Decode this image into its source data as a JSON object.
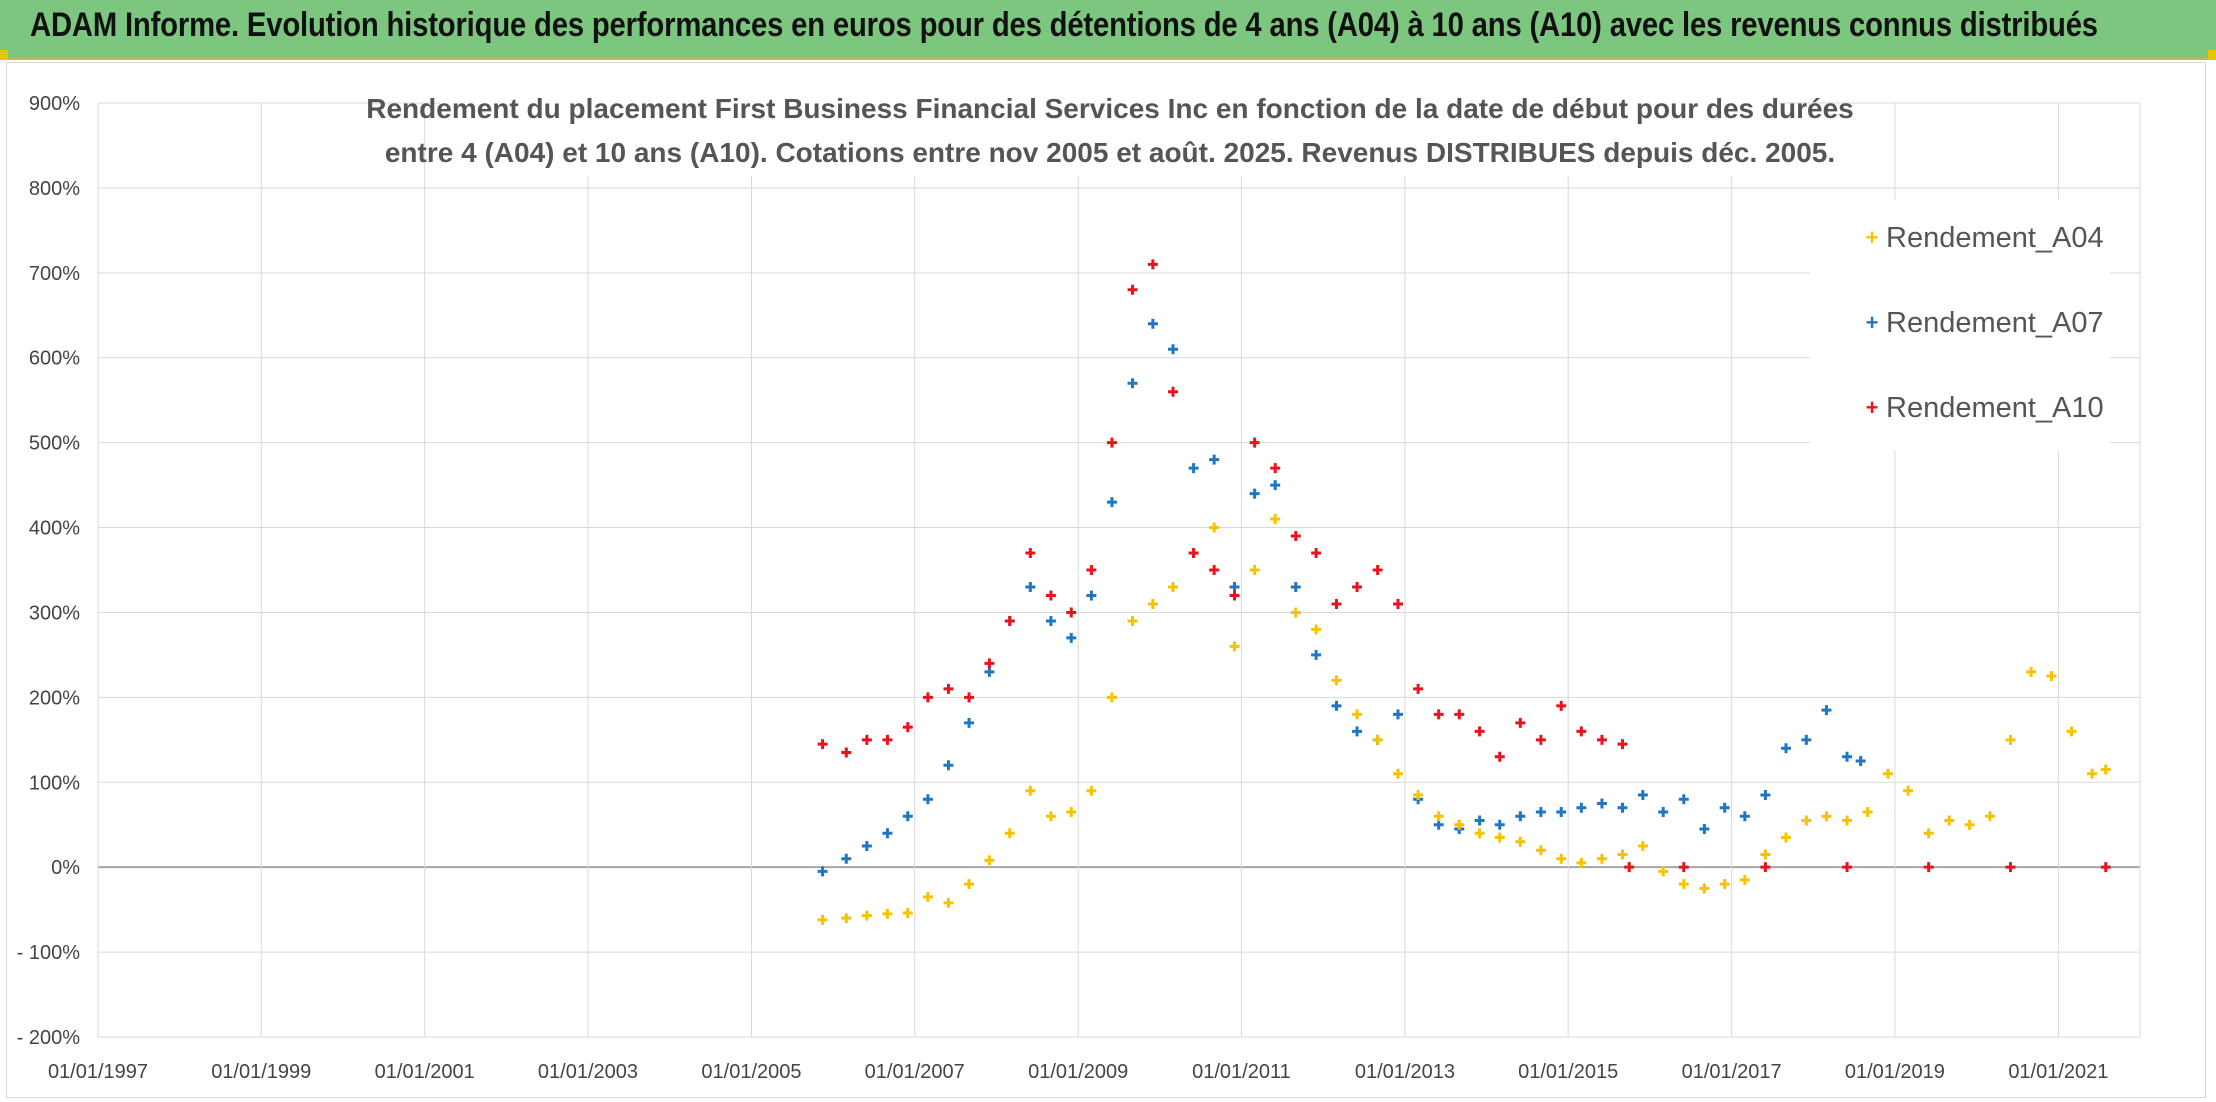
{
  "header": {
    "title": "ADAM Informe. Evolution historique des performances en euros pour des détentions de 4 ans (A04) à 10 ans (A10) avec les revenus connus distribués"
  },
  "chart_data": {
    "type": "scatter",
    "title_lines": [
      "Rendement du placement First Business Financial Services Inc en fonction de la date de début pour des durées",
      "entre 4 (A04) et 10 ans (A10). Cotations entre nov 2005 et août. 2025. Revenus DISTRIBUES depuis déc. 2005."
    ],
    "xlabel": "",
    "ylabel": "",
    "x_range": [
      "1997-01-01",
      "2022-01-01"
    ],
    "x_ticks": [
      "01/01/1997",
      "01/01/1999",
      "01/01/2001",
      "01/01/2003",
      "01/01/2005",
      "01/01/2007",
      "01/01/2009",
      "01/01/2011",
      "01/01/2013",
      "01/01/2015",
      "01/01/2017",
      "01/01/2019",
      "01/01/2021"
    ],
    "ylim": [
      -200,
      900
    ],
    "y_ticks": [
      "900%",
      "800%",
      "700%",
      "600%",
      "500%",
      "400%",
      "300%",
      "200%",
      "100%",
      "0%",
      "- 100%",
      "- 200%"
    ],
    "y_unit": "%",
    "grid": true,
    "legend_position": "top-right",
    "colors": {
      "A04": "#f7c300",
      "A07": "#1f77c4",
      "A10": "#e8131c",
      "grid": "#d9d9d9",
      "zero_line": "#a6a6a6"
    },
    "series": [
      {
        "name": "Rendement_A04",
        "color": "#f7c300",
        "points": [
          [
            "2005-11-15",
            -62
          ],
          [
            "2006-03-01",
            -60
          ],
          [
            "2006-06-01",
            -57
          ],
          [
            "2006-09-01",
            -55
          ],
          [
            "2006-12-01",
            -54
          ],
          [
            "2007-03-01",
            -35
          ],
          [
            "2007-06-01",
            -42
          ],
          [
            "2007-09-01",
            -20
          ],
          [
            "2007-12-01",
            8
          ],
          [
            "2008-03-01",
            40
          ],
          [
            "2008-06-01",
            90
          ],
          [
            "2008-09-01",
            60
          ],
          [
            "2008-12-01",
            65
          ],
          [
            "2009-03-01",
            90
          ],
          [
            "2009-06-01",
            200
          ],
          [
            "2009-09-01",
            290
          ],
          [
            "2009-12-01",
            310
          ],
          [
            "2010-03-01",
            330
          ],
          [
            "2010-06-01",
            370
          ],
          [
            "2010-09-01",
            400
          ],
          [
            "2010-12-01",
            260
          ],
          [
            "2011-03-01",
            350
          ],
          [
            "2011-06-01",
            410
          ],
          [
            "2011-09-01",
            300
          ],
          [
            "2011-12-01",
            280
          ],
          [
            "2012-03-01",
            220
          ],
          [
            "2012-06-01",
            180
          ],
          [
            "2012-09-01",
            150
          ],
          [
            "2012-12-01",
            110
          ],
          [
            "2013-03-01",
            85
          ],
          [
            "2013-06-01",
            60
          ],
          [
            "2013-09-01",
            50
          ],
          [
            "2013-12-01",
            40
          ],
          [
            "2014-03-01",
            35
          ],
          [
            "2014-06-01",
            30
          ],
          [
            "2014-09-01",
            20
          ],
          [
            "2014-12-01",
            10
          ],
          [
            "2015-03-01",
            5
          ],
          [
            "2015-06-01",
            10
          ],
          [
            "2015-09-01",
            15
          ],
          [
            "2015-12-01",
            25
          ],
          [
            "2016-03-01",
            -5
          ],
          [
            "2016-06-01",
            -20
          ],
          [
            "2016-09-01",
            -25
          ],
          [
            "2016-12-01",
            -20
          ],
          [
            "2017-03-01",
            -15
          ],
          [
            "2017-06-01",
            15
          ],
          [
            "2017-09-01",
            35
          ],
          [
            "2017-12-01",
            55
          ],
          [
            "2018-03-01",
            60
          ],
          [
            "2018-06-01",
            55
          ],
          [
            "2018-09-01",
            65
          ],
          [
            "2018-12-01",
            110
          ],
          [
            "2019-03-01",
            90
          ],
          [
            "2019-06-01",
            40
          ],
          [
            "2019-09-01",
            55
          ],
          [
            "2019-12-01",
            50
          ],
          [
            "2020-03-01",
            60
          ],
          [
            "2020-06-01",
            150
          ],
          [
            "2020-09-01",
            230
          ],
          [
            "2020-12-01",
            225
          ],
          [
            "2021-03-01",
            160
          ],
          [
            "2021-06-01",
            110
          ],
          [
            "2021-08-01",
            115
          ]
        ]
      },
      {
        "name": "Rendement_A07",
        "color": "#1f77c4",
        "points": [
          [
            "2005-11-15",
            -5
          ],
          [
            "2006-03-01",
            10
          ],
          [
            "2006-06-01",
            25
          ],
          [
            "2006-09-01",
            40
          ],
          [
            "2006-12-01",
            60
          ],
          [
            "2007-03-01",
            80
          ],
          [
            "2007-06-01",
            120
          ],
          [
            "2007-09-01",
            170
          ],
          [
            "2007-12-01",
            230
          ],
          [
            "2008-03-01",
            290
          ],
          [
            "2008-06-01",
            330
          ],
          [
            "2008-09-01",
            290
          ],
          [
            "2008-12-01",
            270
          ],
          [
            "2009-03-01",
            320
          ],
          [
            "2009-06-01",
            430
          ],
          [
            "2009-09-01",
            570
          ],
          [
            "2009-12-01",
            640
          ],
          [
            "2010-03-01",
            610
          ],
          [
            "2010-06-01",
            470
          ],
          [
            "2010-09-01",
            480
          ],
          [
            "2010-12-01",
            330
          ],
          [
            "2011-03-01",
            440
          ],
          [
            "2011-06-01",
            450
          ],
          [
            "2011-09-01",
            330
          ],
          [
            "2011-12-01",
            250
          ],
          [
            "2012-03-01",
            190
          ],
          [
            "2012-06-01",
            160
          ],
          [
            "2012-09-01",
            150
          ],
          [
            "2012-12-01",
            180
          ],
          [
            "2013-03-01",
            80
          ],
          [
            "2013-06-01",
            50
          ],
          [
            "2013-09-01",
            45
          ],
          [
            "2013-12-01",
            55
          ],
          [
            "2014-03-01",
            50
          ],
          [
            "2014-06-01",
            60
          ],
          [
            "2014-09-01",
            65
          ],
          [
            "2014-12-01",
            65
          ],
          [
            "2015-03-01",
            70
          ],
          [
            "2015-06-01",
            75
          ],
          [
            "2015-09-01",
            70
          ],
          [
            "2015-12-01",
            85
          ],
          [
            "2016-03-01",
            65
          ],
          [
            "2016-06-01",
            80
          ],
          [
            "2016-09-01",
            45
          ],
          [
            "2016-12-01",
            70
          ],
          [
            "2017-03-01",
            60
          ],
          [
            "2017-06-01",
            85
          ],
          [
            "2017-09-01",
            140
          ],
          [
            "2017-12-01",
            150
          ],
          [
            "2018-03-01",
            185
          ],
          [
            "2018-06-01",
            130
          ],
          [
            "2018-08-01",
            125
          ]
        ]
      },
      {
        "name": "Rendement_A10",
        "color": "#e8131c",
        "points": [
          [
            "2005-11-15",
            145
          ],
          [
            "2006-03-01",
            135
          ],
          [
            "2006-06-01",
            150
          ],
          [
            "2006-09-01",
            150
          ],
          [
            "2006-12-01",
            165
          ],
          [
            "2007-03-01",
            200
          ],
          [
            "2007-06-01",
            210
          ],
          [
            "2007-09-01",
            200
          ],
          [
            "2007-12-01",
            240
          ],
          [
            "2008-03-01",
            290
          ],
          [
            "2008-06-01",
            370
          ],
          [
            "2008-09-01",
            320
          ],
          [
            "2008-12-01",
            300
          ],
          [
            "2009-03-01",
            350
          ],
          [
            "2009-06-01",
            500
          ],
          [
            "2009-09-01",
            680
          ],
          [
            "2009-12-01",
            710
          ],
          [
            "2010-03-01",
            560
          ],
          [
            "2010-06-01",
            370
          ],
          [
            "2010-09-01",
            350
          ],
          [
            "2010-12-01",
            320
          ],
          [
            "2011-03-01",
            500
          ],
          [
            "2011-06-01",
            470
          ],
          [
            "2011-09-01",
            390
          ],
          [
            "2011-12-01",
            370
          ],
          [
            "2012-03-01",
            310
          ],
          [
            "2012-06-01",
            330
          ],
          [
            "2012-09-01",
            350
          ],
          [
            "2012-12-01",
            310
          ],
          [
            "2013-03-01",
            210
          ],
          [
            "2013-06-01",
            180
          ],
          [
            "2013-09-01",
            180
          ],
          [
            "2013-12-01",
            160
          ],
          [
            "2014-03-01",
            130
          ],
          [
            "2014-06-01",
            170
          ],
          [
            "2014-09-01",
            150
          ],
          [
            "2014-12-01",
            190
          ],
          [
            "2015-03-01",
            160
          ],
          [
            "2015-06-01",
            150
          ],
          [
            "2015-09-01",
            145
          ],
          [
            "2015-10-01",
            0
          ],
          [
            "2016-06-01",
            0
          ],
          [
            "2017-06-01",
            0
          ],
          [
            "2018-06-01",
            0
          ],
          [
            "2019-06-01",
            0
          ],
          [
            "2020-06-01",
            0
          ],
          [
            "2021-08-01",
            0
          ]
        ]
      }
    ]
  }
}
